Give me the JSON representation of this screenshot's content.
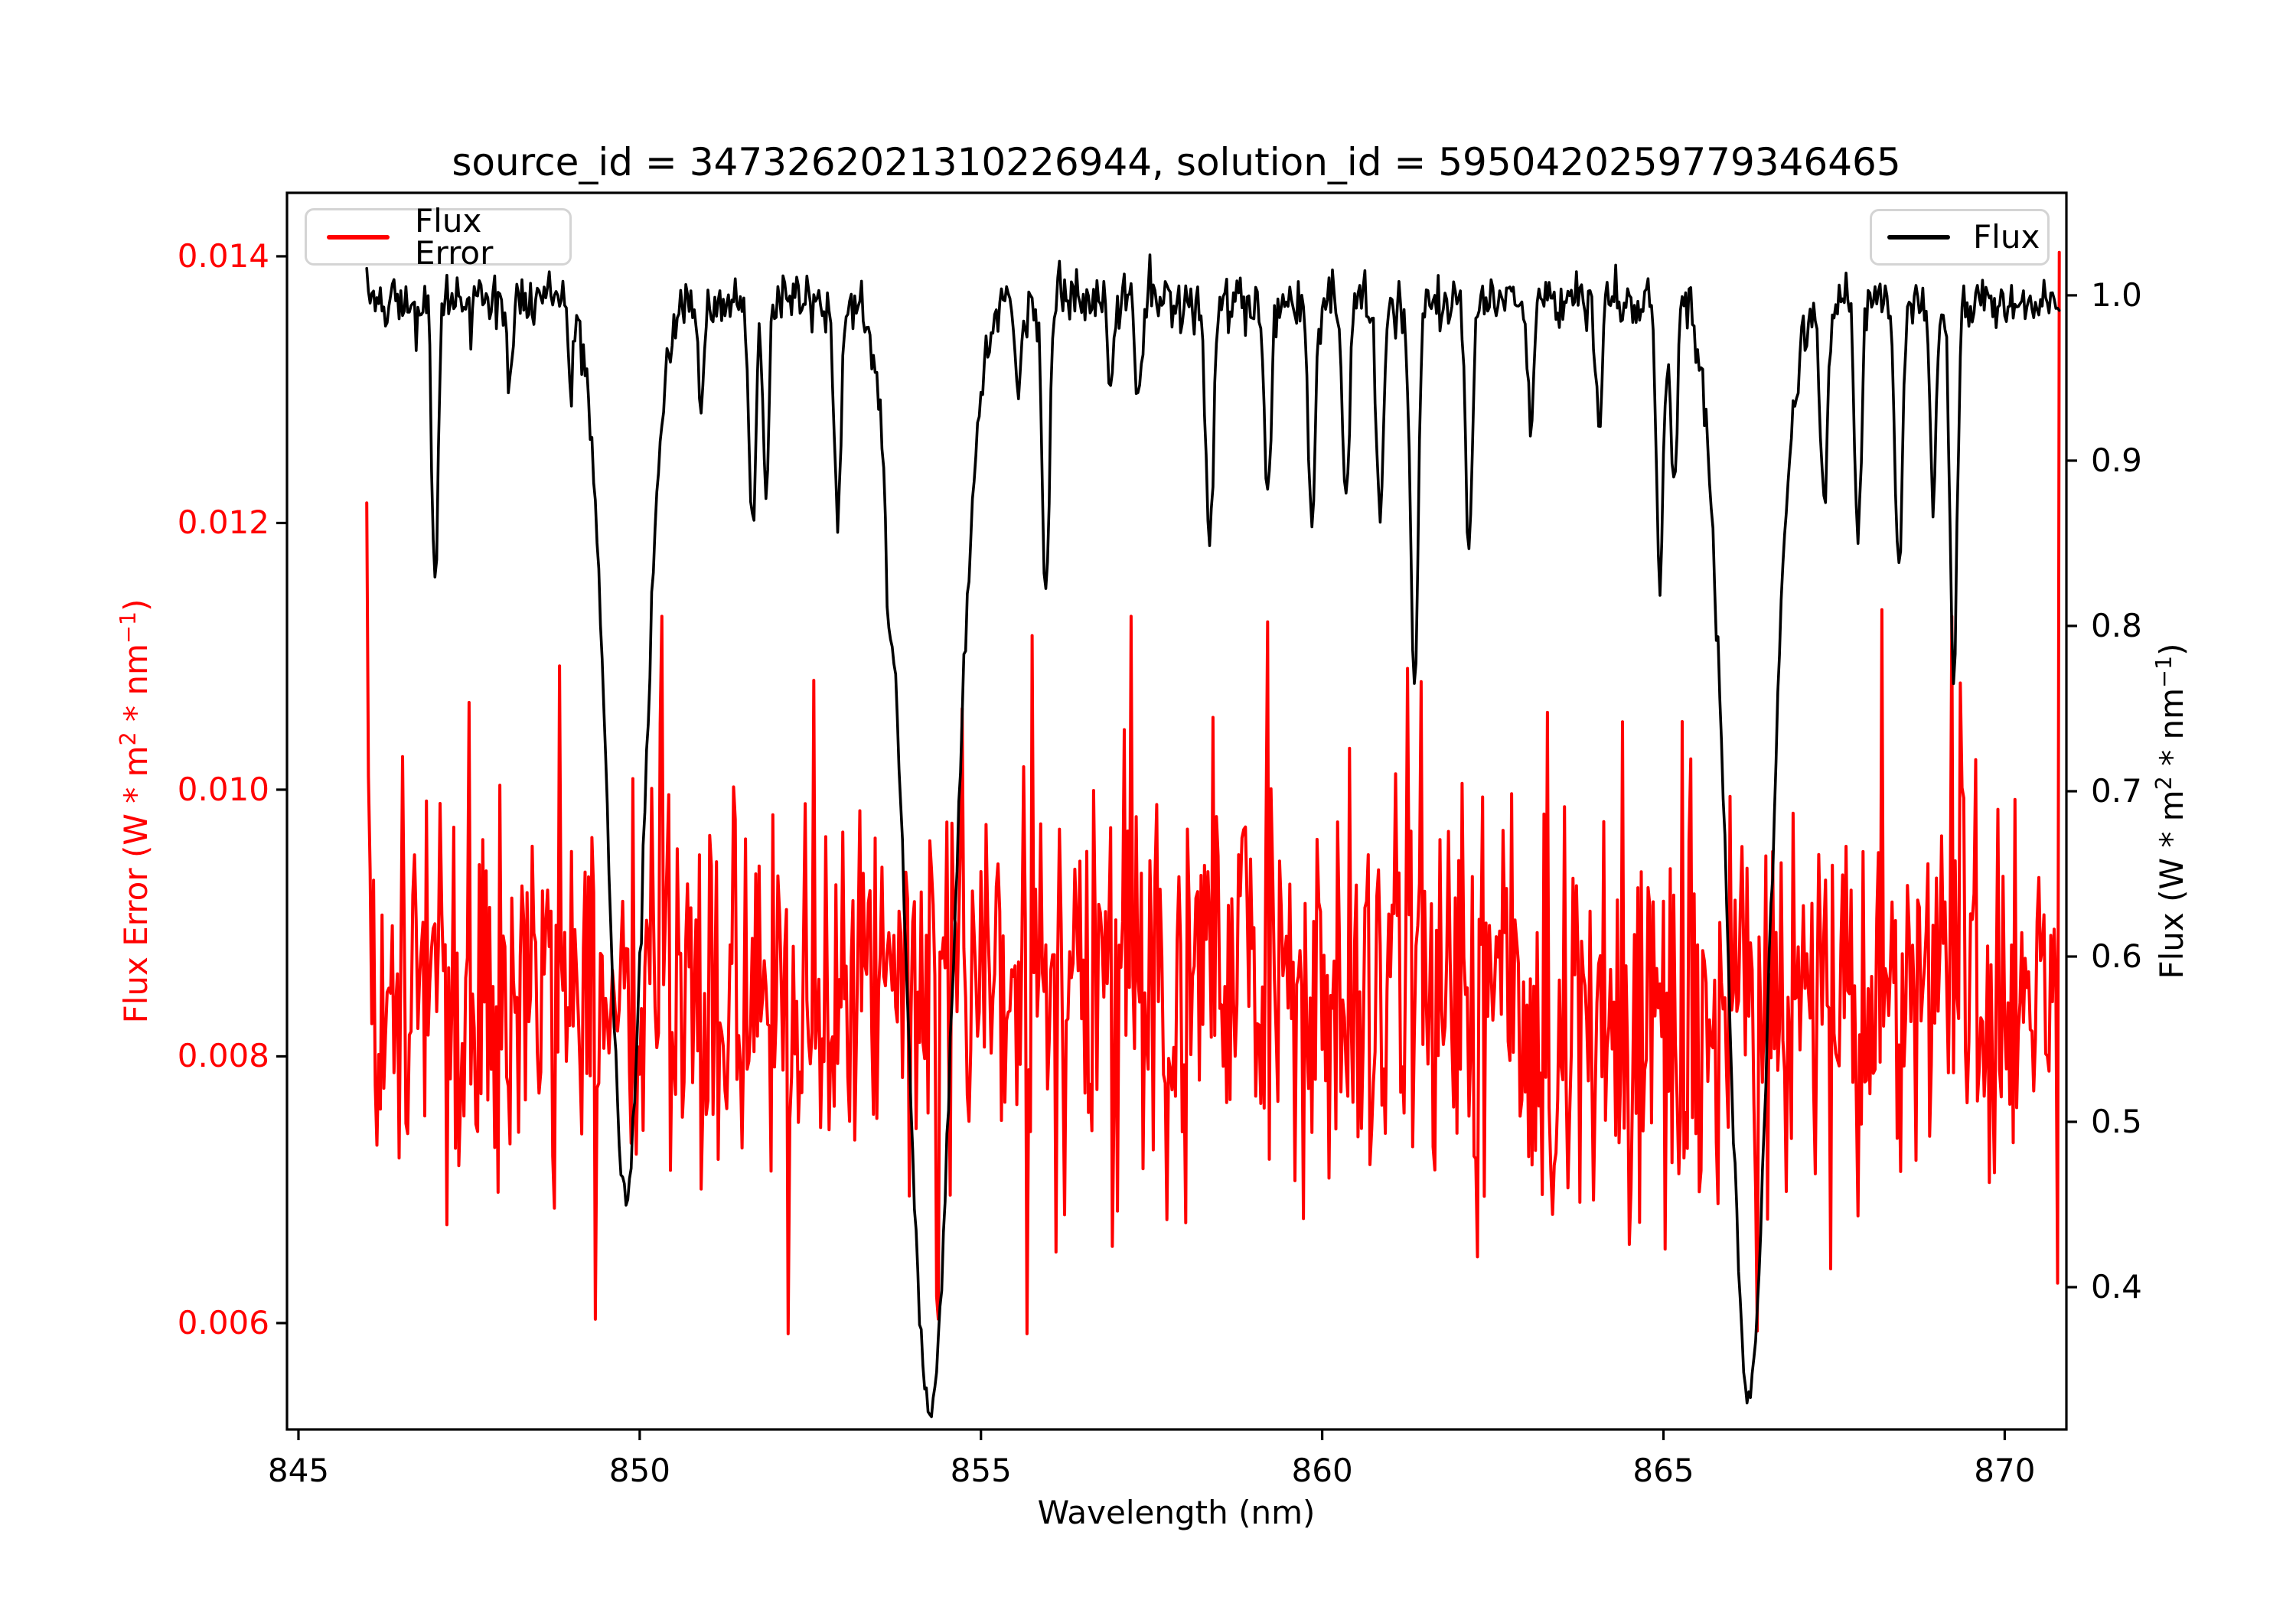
{
  "chart_data": {
    "type": "line",
    "title": "source_id = 3473262021310226944, solution_id = 5950420259779346465",
    "xlabel": "Wavelength (nm)",
    "grid": false,
    "background": "#ffffff",
    "x_ticks": [
      "845",
      "850",
      "855",
      "860",
      "865",
      "870"
    ],
    "x_tick_values": [
      845,
      850,
      855,
      860,
      865,
      870
    ],
    "xlim": [
      844.832,
      870.904
    ],
    "left_axis": {
      "label_parts": [
        "Flux Error (W * m",
        "2",
        " * nm",
        "−1",
        ")"
      ],
      "ticks": [
        "0.014",
        "0.012",
        "0.010",
        "0.008",
        "0.006"
      ],
      "tick_values": [
        0.014,
        0.012,
        0.01,
        0.008,
        0.006
      ],
      "lim": [
        0.005202,
        0.014476
      ],
      "label_color": "#ff0000",
      "tick_mark_color": "#000000"
    },
    "right_axis": {
      "label_parts": [
        "Flux (W * m",
        "2",
        " * nm",
        "−1",
        ")"
      ],
      "ticks": [
        "1.0",
        "0.9",
        "0.8",
        "0.7",
        "0.6",
        "0.5",
        "0.4"
      ],
      "tick_values": [
        1.0,
        0.9,
        0.8,
        0.7,
        0.6,
        0.5,
        0.4
      ],
      "lim": [
        0.3139,
        1.062
      ],
      "label_color": "#000000",
      "tick_mark_color": "#000000"
    },
    "legend": [
      {
        "label": "Flux Error",
        "color": "#ff0000",
        "position": "upper left"
      },
      {
        "label": "Flux",
        "color": "#000000",
        "position": "upper right"
      }
    ],
    "seed": 20230607,
    "series": [
      {
        "name": "Flux Error",
        "color": "#ff0000",
        "axis": "left",
        "x_start": 846.0,
        "x_end": 870.8,
        "x_step": 0.025,
        "line_width": 4,
        "synthesis": {
          "base": 0.00845,
          "noise_sigma": 0.00072,
          "spike_prob": 0.055,
          "spike_sigma": 0.0016,
          "clamp": [
            0.00592,
            0.0113
          ],
          "overrides": [
            {
              "x": 846.0,
              "v": 0.01215
            },
            {
              "x": 846.025,
              "v": 0.0101
            },
            {
              "x": 846.05,
              "v": 0.0094
            },
            {
              "x": 852.55,
              "v": 0.01082
            },
            {
              "x": 854.375,
              "v": 0.00603
            },
            {
              "x": 857.1,
              "v": 0.01045
            },
            {
              "x": 861.45,
              "v": 0.01081
            },
            {
              "x": 863.3,
              "v": 0.01058
            },
            {
              "x": 866.375,
              "v": 0.00594
            },
            {
              "x": 868.2,
              "v": 0.01135
            },
            {
              "x": 869.35,
              "v": 0.0108
            },
            {
              "x": 870.775,
              "v": 0.0063
            },
            {
              "x": 870.8,
              "v": 0.01403
            }
          ]
        }
      },
      {
        "name": "Flux",
        "color": "#000000",
        "axis": "right",
        "x_start": 846.0,
        "x_end": 870.8,
        "x_step": 0.025,
        "line_width": 3.6,
        "synthesis": {
          "continuum": 0.997,
          "noise_sigma": 0.0082,
          "absorption_lines": [
            [
              847.0,
              0.17,
              0.045
            ],
            [
              848.1,
              0.05,
              0.04
            ],
            [
              849.0,
              0.05,
              0.04
            ],
            [
              849.8,
              0.545,
              0.26
            ],
            [
              850.9,
              0.06,
              0.04
            ],
            [
              851.65,
              0.14,
              0.05
            ],
            [
              851.85,
              0.12,
              0.045
            ],
            [
              852.9,
              0.13,
              0.05
            ],
            [
              853.65,
              0.07,
              0.045
            ],
            [
              854.25,
              0.675,
              0.34
            ],
            [
              855.55,
              0.06,
              0.04
            ],
            [
              855.95,
              0.18,
              0.05
            ],
            [
              856.9,
              0.05,
              0.04
            ],
            [
              857.3,
              0.07,
              0.045
            ],
            [
              858.35,
              0.15,
              0.055
            ],
            [
              859.2,
              0.12,
              0.05
            ],
            [
              859.85,
              0.14,
              0.05
            ],
            [
              860.35,
              0.12,
              0.05
            ],
            [
              860.85,
              0.13,
              0.05
            ],
            [
              861.35,
              0.24,
              0.055
            ],
            [
              862.15,
              0.15,
              0.05
            ],
            [
              863.05,
              0.08,
              0.045
            ],
            [
              864.05,
              0.08,
              0.045
            ],
            [
              864.95,
              0.18,
              0.05
            ],
            [
              865.15,
              0.12,
              0.045
            ],
            [
              866.25,
              0.665,
              0.3
            ],
            [
              867.35,
              0.13,
              0.05
            ],
            [
              867.85,
              0.15,
              0.05
            ],
            [
              868.45,
              0.17,
              0.05
            ],
            [
              868.95,
              0.12,
              0.045
            ],
            [
              869.25,
              0.24,
              0.05
            ]
          ]
        }
      }
    ]
  }
}
